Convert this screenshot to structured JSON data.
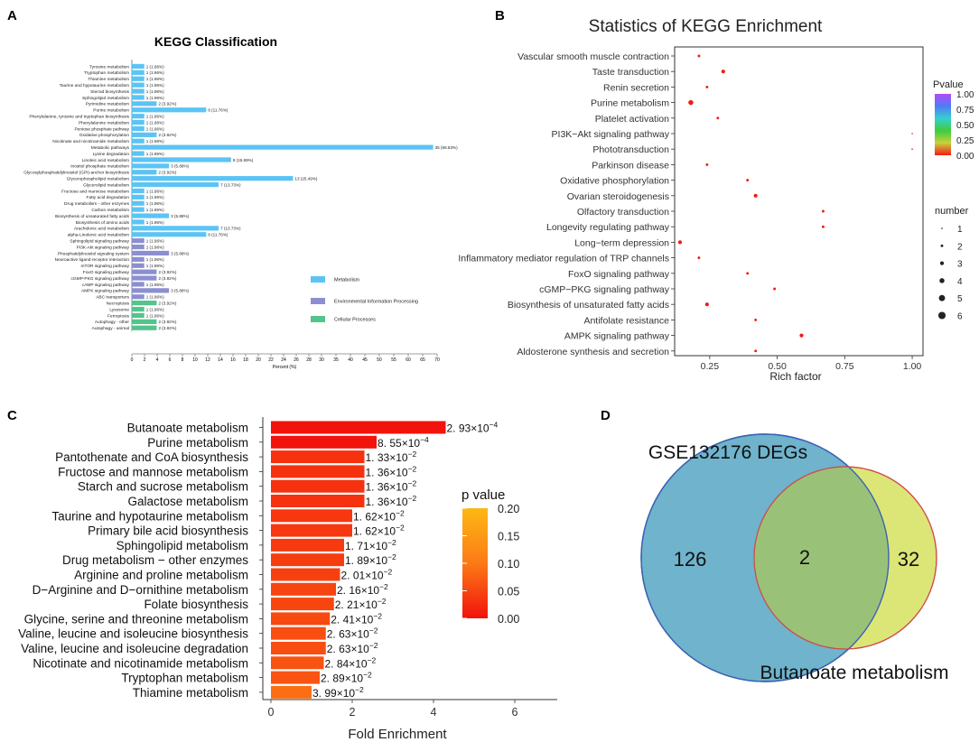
{
  "panels": [
    {
      "letter": "A",
      "chart_data": {
        "type": "bar",
        "orientation": "horizontal",
        "title": "KEGG Classification",
        "xlabel": "Percent (%)",
        "xlim": [
          0,
          70
        ],
        "xticks": [
          0,
          2,
          4,
          6,
          8,
          10,
          12,
          14,
          16,
          18,
          20,
          22,
          24,
          26,
          28,
          30,
          35,
          40,
          45,
          50,
          55,
          60,
          65,
          70
        ],
        "legend_position": "right",
        "categories": [
          "Tyrosine metabolism",
          "Tryptophan metabolism",
          "Thiamine metabolism",
          "Taurine and hypotaurine metabolism",
          "Steroid biosynthesis",
          "Sphingolipid metabolism",
          "Pyrimidine metabolism",
          "Purine metabolism",
          "Phenylalanine, tyrosine and tryptophan biosynthesis",
          "Phenylalanine metabolism",
          "Pentose phosphate pathway",
          "Oxidative phosphorylation",
          "Nicotinate and nicotinamide metabolism",
          "Metabolic pathways",
          "Lysine degradation",
          "Linoleic acid metabolism",
          "Inositol phosphate metabolism",
          "Glycosylphosphatidylinositol (GPI)-anchor biosynthesis",
          "Glycerophospholipid metabolism",
          "Glycerolipid metabolism",
          "Fructose and mannose metabolism",
          "Fatty acid degradation",
          "Drug metabolism - other enzymes",
          "Carbon metabolism",
          "Biosynthesis of unsaturated fatty acids",
          "Biosynthesis of amino acids",
          "Arachidonic acid metabolism",
          "alpha-Linolenic acid metabolism",
          "Sphingolipid signaling pathway",
          "PI3K-Akt signaling pathway",
          "Phosphatidylinositol signaling system",
          "Neuroactive ligand-receptor interaction",
          "mTOR signaling pathway",
          "FoxO signaling pathway",
          "cGMP-PKG signaling pathway",
          "cAMP signaling pathway",
          "AMPK signaling pathway",
          "ABC transporters",
          "Necroptosis",
          "Lysosome",
          "Ferroptosis",
          "Autophagy - other",
          "Autophagy - animal"
        ],
        "values": [
          1.96,
          1.96,
          1.96,
          1.96,
          1.96,
          1.96,
          3.92,
          11.76,
          1.96,
          1.96,
          1.96,
          3.92,
          1.96,
          68.63,
          1.96,
          15.69,
          5.88,
          3.92,
          25.49,
          13.73,
          1.96,
          1.96,
          1.96,
          1.96,
          5.88,
          1.96,
          13.73,
          11.76,
          1.96,
          1.96,
          5.88,
          1.96,
          1.96,
          3.92,
          3.92,
          1.96,
          5.88,
          1.96,
          3.92,
          1.96,
          1.96,
          3.92,
          3.92
        ],
        "labels": [
          "1 (1.96%)",
          "1 (1.96%)",
          "1 (1.96%)",
          "1 (1.96%)",
          "1 (1.96%)",
          "1 (1.96%)",
          "2 (3.92%)",
          "6 (11.76%)",
          "1 (1.96%)",
          "1 (1.96%)",
          "1 (1.96%)",
          "2 (3.92%)",
          "1 (1.96%)",
          "35 (68.63%)",
          "1 (1.96%)",
          "8 (15.69%)",
          "3 (5.88%)",
          "2 (3.92%)",
          "13 (25.49%)",
          "7 (13.73%)",
          "1 (1.96%)",
          "1 (1.96%)",
          "1 (1.96%)",
          "1 (1.96%)",
          "3 (5.88%)",
          "1 (1.96%)",
          "7 (13.73%)",
          "6 (11.76%)",
          "1 (1.96%)",
          "1 (1.96%)",
          "3 (5.88%)",
          "1 (1.96%)",
          "1 (1.96%)",
          "2 (3.92%)",
          "2 (3.92%)",
          "1 (1.96%)",
          "3 (5.88%)",
          "1 (1.96%)",
          "2 (3.92%)",
          "1 (1.96%)",
          "1 (1.96%)",
          "2 (3.92%)",
          "2 (3.92%)"
        ],
        "groups": [
          0,
          0,
          0,
          0,
          0,
          0,
          0,
          0,
          0,
          0,
          0,
          0,
          0,
          0,
          0,
          0,
          0,
          0,
          0,
          0,
          0,
          0,
          0,
          0,
          0,
          0,
          0,
          0,
          1,
          1,
          1,
          1,
          1,
          1,
          1,
          1,
          1,
          1,
          2,
          2,
          2,
          2,
          2
        ],
        "legend": [
          "Metabolism",
          "Environmental Information Processing",
          "Cellular Processes"
        ],
        "colors": [
          "#5bc4f5",
          "#8c8fcf",
          "#52c48c"
        ]
      }
    },
    {
      "letter": "B",
      "chart_data": {
        "type": "scatter",
        "title": "Statistics of KEGG Enrichment",
        "xlabel": "Rich factor",
        "xlim": [
          0.12,
          1.04
        ],
        "xticks": [
          0.25,
          0.5,
          0.75,
          1.0
        ],
        "xtick_labels": [
          "0.25",
          "0.50",
          "0.75",
          "1.00"
        ],
        "categories": [
          "Vascular smooth muscle contraction",
          "Taste transduction",
          "Renin secretion",
          "Purine metabolism",
          "Platelet activation",
          "PI3K−Akt signaling pathway",
          "Phototransduction",
          "Parkinson disease",
          "Oxidative phosphorylation",
          "Ovarian steroidogenesis",
          "Olfactory transduction",
          "Longevity regulating pathway",
          "Long−term depression",
          "Inflammatory mediator regulation of TRP channels",
          "FoxO signaling pathway",
          "cGMP−PKG signaling pathway",
          "Biosynthesis of unsaturated fatty acids",
          "Antifolate resistance",
          "AMPK signaling pathway",
          "Aldosterone synthesis and secretion"
        ],
        "x": [
          0.21,
          0.3,
          0.24,
          0.18,
          0.28,
          1.0,
          1.0,
          0.24,
          0.39,
          0.42,
          0.67,
          0.67,
          0.14,
          0.21,
          0.39,
          0.49,
          0.24,
          0.42,
          0.59,
          0.42
        ],
        "size": [
          2,
          3,
          2,
          4,
          2,
          1,
          1,
          2,
          2,
          3,
          2,
          2,
          3,
          2,
          2,
          2,
          3,
          2,
          3,
          2
        ],
        "pvalue": [
          0.05,
          0.03,
          0.04,
          0.01,
          0.05,
          0.06,
          0.06,
          0.05,
          0.04,
          0.03,
          0.06,
          0.06,
          0.02,
          0.05,
          0.04,
          0.03,
          0.02,
          0.04,
          0.02,
          0.04
        ],
        "color_legend_title": "Pvalue",
        "color_ticks": [
          "1.00",
          "0.75",
          "0.50",
          "0.25",
          "0.00"
        ],
        "size_legend_title": "number",
        "size_legend_values": [
          1,
          2,
          3,
          4,
          5,
          6
        ]
      }
    },
    {
      "letter": "C",
      "chart_data": {
        "type": "bar",
        "orientation": "horizontal",
        "xlabel": "Fold Enrichment",
        "xlim": [
          0,
          7.2
        ],
        "xticks": [
          0,
          2,
          4,
          6
        ],
        "categories": [
          "Butanoate metabolism",
          "Purine metabolism",
          "Pantothenate and CoA biosynthesis",
          "Fructose and mannose metabolism",
          "Starch and sucrose metabolism",
          "Galactose metabolism",
          "Taurine and hypotaurine metabolism",
          "Primary bile acid biosynthesis",
          "Sphingolipid metabolism",
          "Drug metabolism − other enzymes",
          "Arginine and proline metabolism",
          "D−Arginine and D−ornithine metabolism",
          "Folate biosynthesis",
          "Glycine, serine and threonine metabolism",
          "Valine, leucine and isoleucine biosynthesis",
          "Valine, leucine and isoleucine degradation",
          "Nicotinate and nicotinamide metabolism",
          "Tryptophan metabolism",
          "Thiamine metabolism"
        ],
        "values": [
          4.3,
          2.6,
          2.3,
          2.3,
          2.3,
          2.3,
          2.0,
          2.0,
          1.8,
          1.8,
          1.7,
          1.6,
          1.55,
          1.45,
          1.35,
          1.35,
          1.3,
          1.2,
          1.0
        ],
        "pvalue": [
          0.000293,
          0.000855,
          0.0133,
          0.0136,
          0.0136,
          0.0136,
          0.0162,
          0.0162,
          0.0171,
          0.0189,
          0.0201,
          0.0216,
          0.0221,
          0.0241,
          0.0263,
          0.0263,
          0.0284,
          0.0289,
          0.0399
        ],
        "mantissa": [
          "2. 93",
          "8. 55",
          "1. 33",
          "1. 36",
          "1. 36",
          "1. 36",
          "1. 62",
          "1. 62",
          "1. 71",
          "1. 89",
          "2. 01",
          "2. 16",
          "2. 21",
          "2. 41",
          "2. 63",
          "2. 63",
          "2. 84",
          "2. 89",
          "3. 99"
        ],
        "exponent": [
          "−4",
          "−4",
          "−2",
          "−2",
          "−2",
          "−2",
          "−2",
          "−2",
          "−2",
          "−2",
          "−2",
          "−2",
          "−2",
          "−2",
          "−2",
          "−2",
          "−2",
          "−2",
          "−2"
        ],
        "times": "×10",
        "legend_title": "p value",
        "legend_ticks": [
          "0.20",
          "0.15",
          "0.10",
          "0.05",
          "0.00"
        ]
      }
    },
    {
      "letter": "D",
      "chart_data": {
        "type": "venn",
        "sets": [
          {
            "name": "GSE132176 DEGs",
            "only": "126",
            "color": "#6fb3cc"
          },
          {
            "name": "Butanoate metabolism",
            "only": "32",
            "color": "#dbe676"
          }
        ],
        "intersection": "2",
        "overlap_color": "#99c278"
      }
    }
  ]
}
